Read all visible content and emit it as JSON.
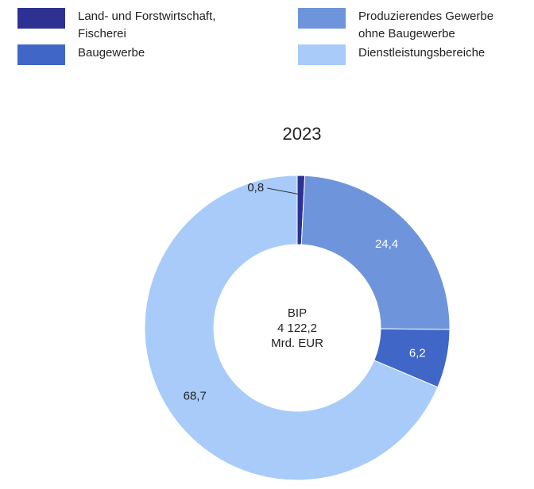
{
  "legend": [
    {
      "label": "Land- und Forstwirtschaft,\nFischerei",
      "color": "#2e3192"
    },
    {
      "label": "Produzierendes Gewerbe\nohne Baugewerbe",
      "color": "#6e95db"
    },
    {
      "label": "Baugewerbe",
      "color": "#4066c8"
    },
    {
      "label": "Dienstleistungsbereiche",
      "color": "#a8cbfa"
    }
  ],
  "chart_data": {
    "type": "pie",
    "title": "2023",
    "center_label": [
      "BIP",
      "4 122,2",
      "Mrd. EUR"
    ],
    "slices": [
      {
        "label": "Land- und Forstwirtschaft, Fischerei",
        "value": 0.8,
        "value_text": "0,8",
        "color": "#2e3192"
      },
      {
        "label": "Produzierendes Gewerbe ohne Baugewerbe",
        "value": 24.4,
        "value_text": "24,4",
        "color": "#6e95db"
      },
      {
        "label": "Baugewerbe",
        "value": 6.2,
        "value_text": "6,2",
        "color": "#4066c8"
      },
      {
        "label": "Dienstleistungsbereiche",
        "value": 68.7,
        "value_text": "68,7",
        "color": "#a8cbfa"
      }
    ]
  }
}
